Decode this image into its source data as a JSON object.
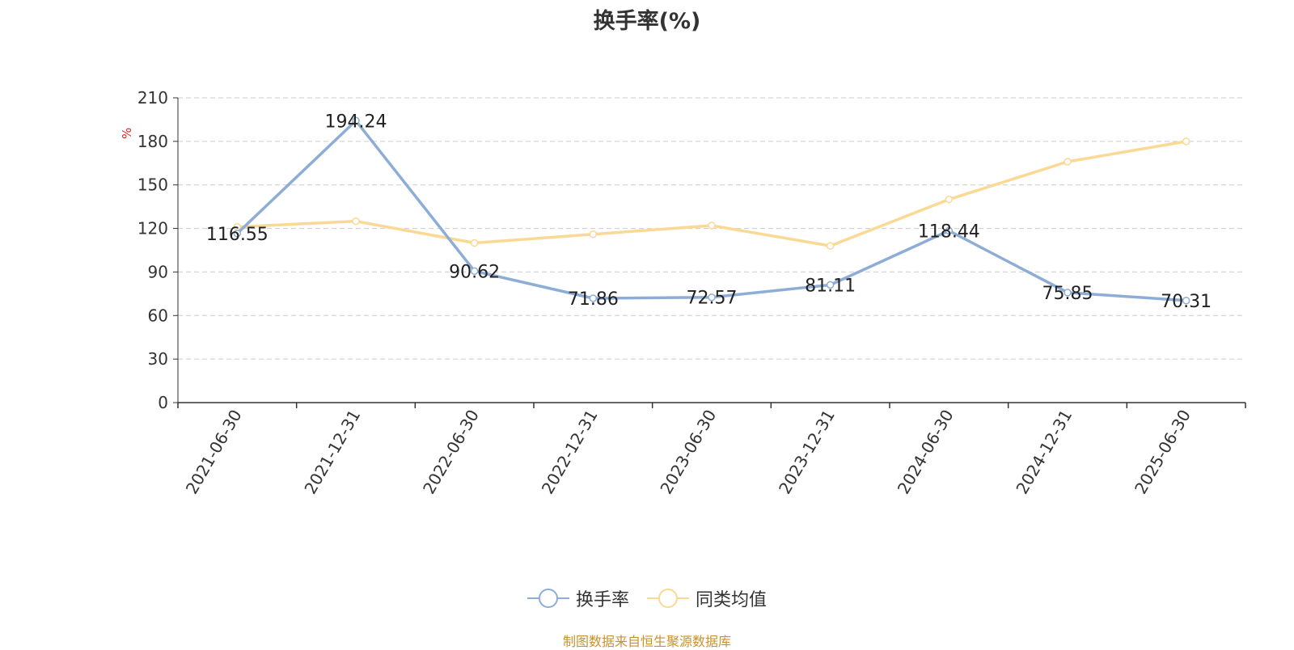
{
  "title": "换手率(%)",
  "source_note": "制图数据来自恒生聚源数据库",
  "legend": [
    {
      "label": "换手率",
      "color": "#8eadd6"
    },
    {
      "label": "同类均值",
      "color": "#fad994"
    }
  ],
  "chart_data": {
    "type": "line",
    "title": "换手率(%)",
    "ylabel": "%",
    "xlabel": "",
    "ylim": [
      0,
      210
    ],
    "yticks": [
      "0",
      "30",
      "60",
      "90",
      "120",
      "150",
      "180",
      "210"
    ],
    "categories": [
      "2021-06-30",
      "2021-12-31",
      "2022-06-30",
      "2022-12-31",
      "2023-06-30",
      "2023-12-31",
      "2024-06-30",
      "2024-12-31",
      "2025-06-30"
    ],
    "grid": true,
    "legend_position": "bottom-center",
    "series": [
      {
        "name": "换手率",
        "color": "#8eadd6",
        "values": [
          116.55,
          194.24,
          90.62,
          71.86,
          72.57,
          81.11,
          118.44,
          75.85,
          70.31
        ],
        "labels": [
          "116.55",
          "194.24",
          "90.62",
          "71.86",
          "72.57",
          "81.11",
          "118.44",
          "75.85",
          "70.31"
        ]
      },
      {
        "name": "同类均值",
        "color": "#fad994",
        "values": [
          121,
          125,
          110,
          116,
          122,
          108,
          140,
          166,
          180
        ]
      }
    ]
  }
}
